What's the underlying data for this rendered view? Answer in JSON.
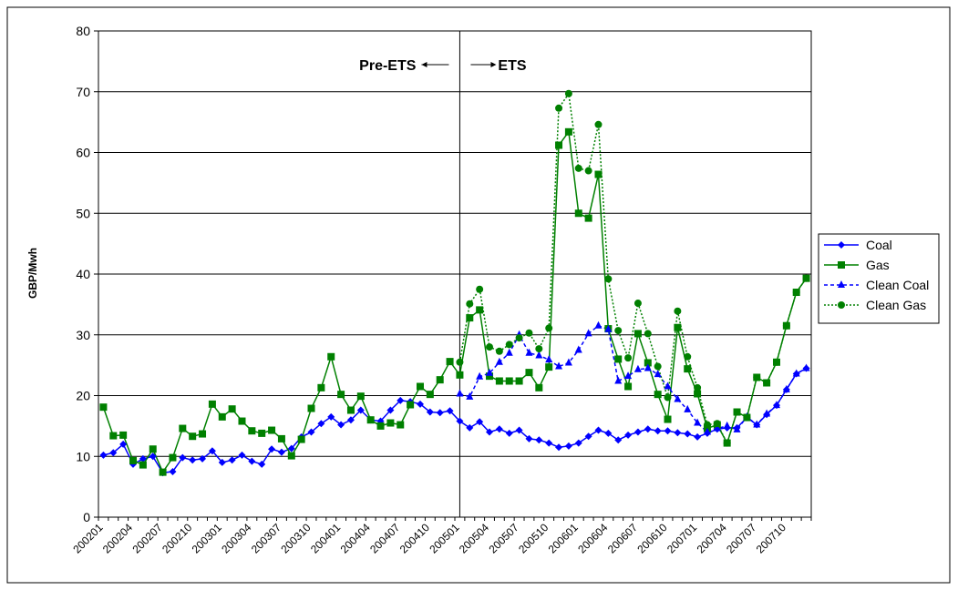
{
  "chart_data": {
    "type": "line",
    "y_label": "GBP/Mwh",
    "annotations": [
      "Pre-ETS",
      "ETS"
    ],
    "divider": "200501",
    "categories": [
      "200201",
      null,
      null,
      "200204",
      null,
      null,
      "200207",
      null,
      null,
      "200210",
      null,
      null,
      "200301",
      null,
      null,
      "200304",
      null,
      null,
      "200307",
      null,
      null,
      "200310",
      null,
      null,
      "200401",
      null,
      null,
      "200404",
      null,
      null,
      "200407",
      null,
      null,
      "200410",
      null,
      null,
      "200501",
      null,
      null,
      "200504",
      null,
      null,
      "200507",
      null,
      null,
      "200510",
      null,
      null,
      "200601",
      null,
      null,
      "200604",
      null,
      null,
      "200607",
      null,
      null,
      "200610",
      null,
      null,
      "200701",
      null,
      null,
      "200704",
      null,
      null,
      "200707",
      null,
      null,
      "200710",
      null,
      null
    ],
    "ylim": [
      0,
      80
    ],
    "yticks": [
      0,
      10,
      20,
      30,
      40,
      50,
      60,
      70,
      80
    ],
    "grid": true,
    "legend": "right",
    "series": [
      {
        "name": "Coal",
        "color": "#0000ff",
        "marker": "diamond",
        "dash": "solid",
        "values": [
          10.2,
          10.6,
          12.0,
          8.7,
          9.6,
          10.0,
          7.3,
          7.5,
          9.8,
          9.4,
          9.6,
          10.9,
          9.0,
          9.4,
          10.2,
          9.2,
          8.7,
          11.2,
          10.7,
          11.3,
          13.2,
          14.0,
          15.4,
          16.5,
          15.2,
          16.0,
          17.6,
          16.0,
          15.8,
          17.6,
          19.2,
          19.0,
          18.6,
          17.3,
          17.2,
          17.5,
          15.8,
          14.7,
          15.7,
          14.0,
          14.5,
          13.8,
          14.3,
          12.9,
          12.7,
          12.2,
          11.5,
          11.7,
          12.2,
          13.3,
          14.3,
          13.8,
          12.7,
          13.5,
          14.0,
          14.5,
          14.2,
          14.2,
          13.9,
          13.7,
          13.2,
          13.8,
          14.5,
          14.7,
          14.7,
          16.4,
          15.2,
          16.9,
          18.4,
          21.0,
          23.6,
          24.5
        ]
      },
      {
        "name": "Gas",
        "color": "#008000",
        "marker": "square",
        "dash": "solid",
        "values": [
          18.1,
          13.4,
          13.5,
          9.3,
          8.6,
          11.2,
          7.4,
          9.8,
          14.6,
          13.3,
          13.7,
          18.6,
          16.5,
          17.8,
          15.8,
          14.2,
          13.8,
          14.3,
          12.9,
          10.1,
          12.8,
          17.9,
          21.3,
          26.4,
          20.2,
          17.6,
          19.9,
          16.0,
          15.0,
          15.5,
          15.2,
          18.5,
          21.5,
          20.2,
          22.6,
          25.6,
          23.4,
          32.8,
          34.1,
          23.2,
          22.4,
          22.4,
          22.4,
          23.8,
          21.3,
          24.7,
          61.2,
          63.4,
          50.0,
          49.2,
          56.4,
          31.0,
          26.0,
          21.5,
          30.2,
          25.4,
          20.2,
          16.1,
          31.2,
          24.4,
          20.3,
          14.6,
          15.2,
          12.2,
          17.3,
          16.4,
          23.0,
          22.1,
          25.5,
          31.5,
          37.0,
          39.3
        ]
      },
      {
        "name": "Clean Coal",
        "color": "#0000ff",
        "marker": "triangle",
        "dash": "dashed",
        "values": [
          null,
          null,
          null,
          null,
          null,
          null,
          null,
          null,
          null,
          null,
          null,
          null,
          null,
          null,
          null,
          null,
          null,
          null,
          null,
          null,
          null,
          null,
          null,
          null,
          null,
          null,
          null,
          null,
          null,
          null,
          null,
          null,
          null,
          null,
          null,
          null,
          20.3,
          19.8,
          23.1,
          23.7,
          25.5,
          27.0,
          30.0,
          27.0,
          26.6,
          25.9,
          24.8,
          25.4,
          27.5,
          30.2,
          31.5,
          30.9,
          22.4,
          23.2,
          24.3,
          24.5,
          23.5,
          21.5,
          19.4,
          17.7,
          15.5,
          14.0,
          14.6,
          15.0,
          14.4,
          16.5,
          15.2,
          17.0,
          18.4,
          21.0,
          23.6,
          24.5
        ]
      },
      {
        "name": "Clean Gas",
        "color": "#008000",
        "marker": "circle",
        "dash": "dotted",
        "values": [
          null,
          null,
          null,
          null,
          null,
          null,
          null,
          null,
          null,
          null,
          null,
          null,
          null,
          null,
          null,
          null,
          null,
          null,
          null,
          null,
          null,
          null,
          null,
          null,
          null,
          null,
          null,
          null,
          null,
          null,
          null,
          null,
          null,
          null,
          null,
          null,
          25.5,
          35.1,
          37.5,
          28.0,
          27.3,
          28.4,
          29.5,
          30.3,
          27.7,
          31.1,
          67.3,
          69.7,
          57.4,
          57.0,
          64.6,
          39.2,
          30.7,
          26.2,
          35.2,
          30.2,
          24.8,
          19.7,
          33.9,
          26.4,
          21.3,
          15.2,
          15.4,
          12.2,
          17.3,
          16.4,
          23.0,
          22.1,
          25.5,
          31.5,
          37.0,
          39.3
        ]
      }
    ]
  }
}
